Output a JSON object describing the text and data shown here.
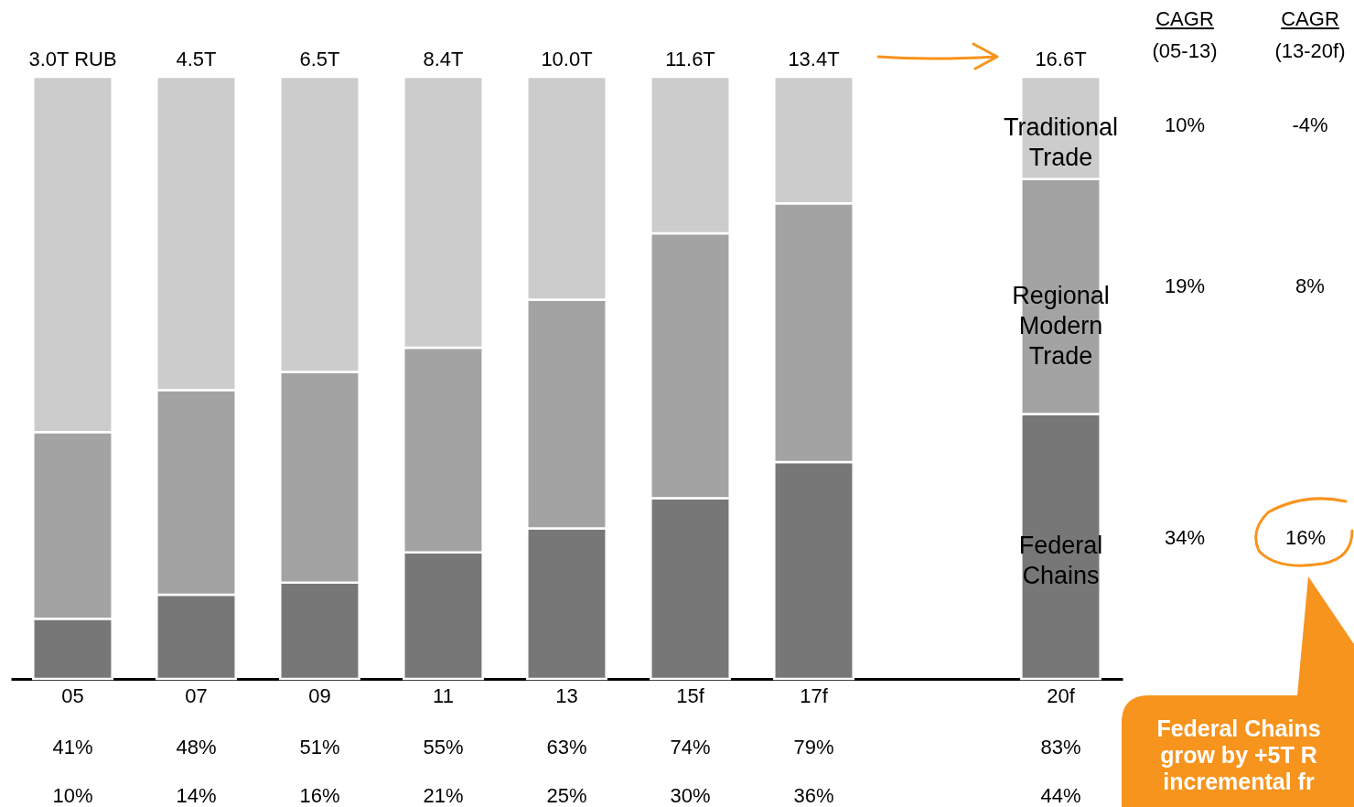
{
  "chart_data": {
    "type": "bar",
    "stacked": true,
    "categories": [
      "05",
      "07",
      "09",
      "11",
      "13",
      "15f",
      "17f",
      null,
      "20f"
    ],
    "series": [
      {
        "name": "Federal Chains",
        "color": "#777777",
        "values": [
          10,
          14,
          16,
          21,
          25,
          30,
          36,
          null,
          44
        ],
        "value_labels": [
          "10%",
          "14%",
          "16%",
          "21%",
          "25%",
          "30%",
          "36%",
          null,
          "44%"
        ]
      },
      {
        "name": "Regional Modern Trade",
        "color": "#a3a3a3",
        "values": [
          31,
          34,
          35,
          34,
          38,
          44,
          43,
          null,
          39
        ]
      },
      {
        "name": "Traditional Trade",
        "color": "#cccccc",
        "values": [
          59,
          52,
          49,
          45,
          37,
          26,
          21,
          null,
          17
        ]
      }
    ],
    "ylim": [
      0,
      100
    ],
    "tick_labels": "x",
    "annotations": [
      "3.0T RUB",
      "4.5T",
      "6.5T",
      "8.4T",
      "10.0T",
      "11.6T",
      "13.4T",
      "16.6T",
      "41%",
      "48%",
      "51%",
      "55%",
      "63%",
      "74%",
      "79%",
      "83%",
      "CAGR",
      "(05-13)",
      "CAGR",
      "(13-20f)",
      "10%",
      "-4%",
      "19%",
      "8%",
      "34%",
      "16%",
      "Federal Chains\ngrow by +5T R\nincremental fr"
    ],
    "legend": false
  }
}
